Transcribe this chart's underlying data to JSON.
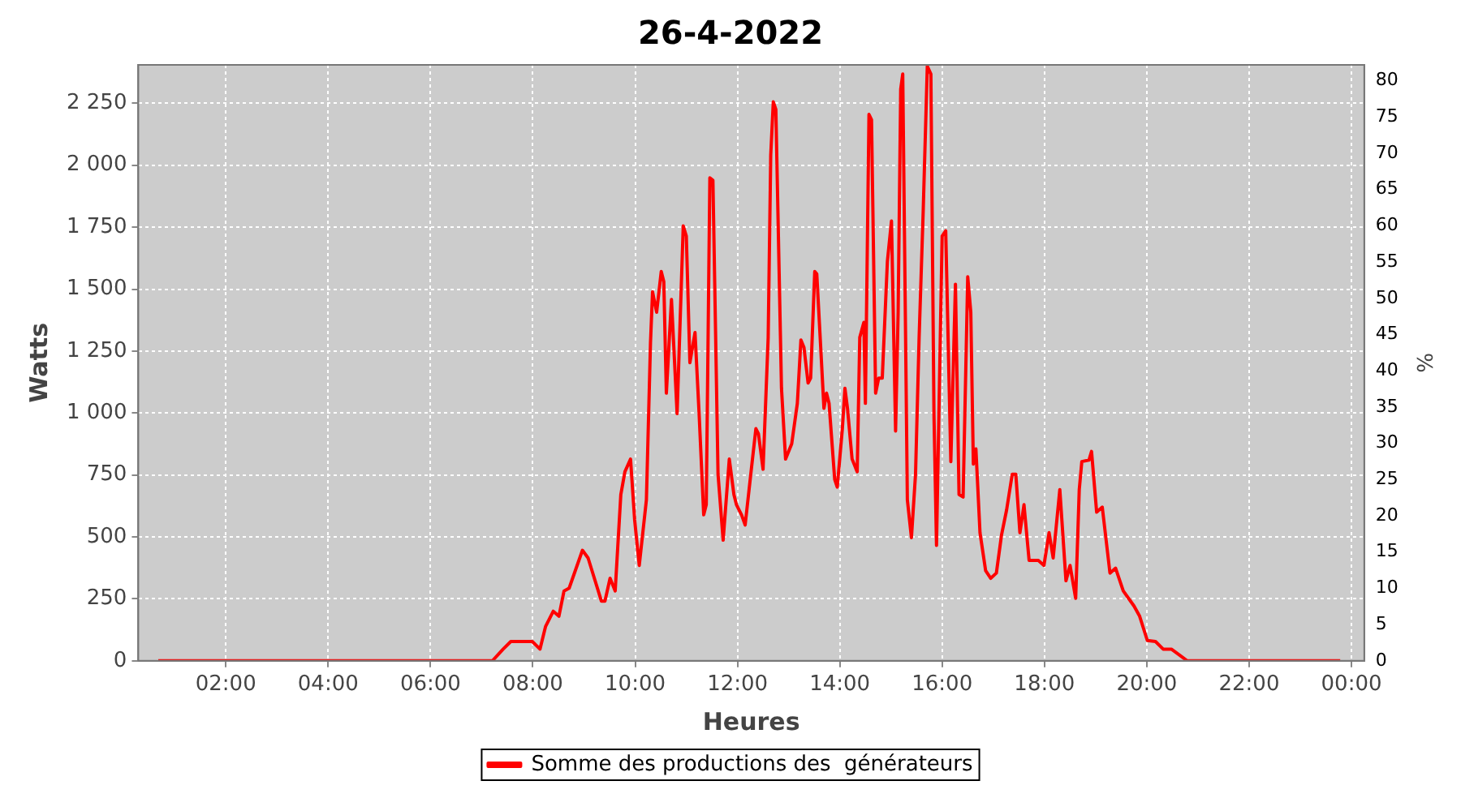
{
  "chart_data": {
    "type": "line",
    "title": "26-4-2022",
    "xlabel": "Heures",
    "ylabel": "Watts",
    "y2label": "%",
    "x": [
      0.68,
      2.0,
      4.0,
      6.0,
      7.21,
      7.42,
      7.57,
      7.99,
      8.14,
      8.25,
      8.4,
      8.51,
      8.61,
      8.71,
      8.97,
      9.08,
      9.34,
      9.41,
      9.51,
      9.61,
      9.72,
      9.8,
      9.91,
      9.99,
      10.08,
      10.22,
      10.3,
      10.34,
      10.42,
      10.51,
      10.56,
      10.61,
      10.71,
      10.82,
      10.94,
      11.0,
      11.07,
      11.17,
      11.25,
      11.34,
      11.39,
      11.46,
      11.52,
      11.62,
      11.72,
      11.84,
      11.93,
      11.98,
      12.08,
      12.15,
      12.26,
      12.36,
      12.41,
      12.5,
      12.6,
      12.65,
      12.7,
      12.75,
      12.86,
      12.94,
      13.06,
      13.17,
      13.24,
      13.3,
      13.38,
      13.43,
      13.51,
      13.55,
      13.69,
      13.74,
      13.79,
      13.9,
      13.95,
      14.05,
      14.1,
      14.15,
      14.24,
      14.34,
      14.39,
      14.47,
      14.5,
      14.57,
      14.62,
      14.7,
      14.76,
      14.83,
      14.93,
      15.01,
      15.09,
      15.14,
      15.19,
      15.23,
      15.32,
      15.4,
      15.48,
      15.55,
      15.63,
      15.71,
      15.78,
      15.84,
      15.89,
      16.0,
      16.07,
      16.17,
      16.26,
      16.33,
      16.41,
      16.5,
      16.56,
      16.61,
      16.66,
      16.74,
      16.85,
      16.95,
      17.06,
      17.16,
      17.26,
      17.37,
      17.44,
      17.52,
      17.6,
      17.7,
      17.88,
      17.99,
      18.09,
      18.17,
      18.3,
      18.42,
      18.5,
      18.61,
      18.68,
      18.73,
      18.87,
      18.92,
      19.02,
      19.13,
      19.28,
      19.39,
      19.54,
      19.75,
      19.86,
      20.01,
      20.17,
      20.32,
      20.48,
      20.68,
      20.79,
      22.0,
      23.78
    ],
    "series": [
      {
        "name": "Somme des productions des  générateurs",
        "color": "#ff0000",
        "values": [
          0,
          0,
          0,
          0,
          0,
          47,
          78,
          78,
          47,
          139,
          200,
          180,
          282,
          293,
          446,
          415,
          241,
          241,
          333,
          282,
          671,
          763,
          814,
          569,
          385,
          650,
          1284,
          1489,
          1407,
          1571,
          1530,
          1080,
          1458,
          998,
          1755,
          1714,
          1203,
          1325,
          998,
          589,
          630,
          1949,
          1939,
          753,
          487,
          814,
          671,
          630,
          589,
          548,
          753,
          937,
          916,
          773,
          1305,
          2041,
          2256,
          2225,
          1100,
          814,
          876,
          1039,
          1295,
          1264,
          1121,
          1141,
          1571,
          1561,
          1019,
          1080,
          1039,
          732,
          701,
          937,
          1100,
          1019,
          814,
          763,
          1305,
          1366,
          1039,
          2205,
          2184,
          1080,
          1141,
          1141,
          1612,
          1775,
          927,
          1407,
          2307,
          2368,
          650,
          497,
          753,
          1305,
          1816,
          2400,
          2368,
          998,
          466,
          1714,
          1735,
          804,
          1520,
          671,
          661,
          1550,
          1407,
          794,
          855,
          517,
          364,
          333,
          354,
          507,
          609,
          753,
          753,
          517,
          630,
          405,
          405,
          385,
          517,
          415,
          691,
          323,
          385,
          252,
          691,
          804,
          810,
          845,
          600,
          620,
          354,
          374,
          282,
          221,
          180,
          82,
          78,
          47,
          47,
          17,
          0,
          0,
          0
        ]
      }
    ],
    "xlim": [
      0.29,
      24.25
    ],
    "xticks": [
      {
        "value": 2,
        "label": "02:00"
      },
      {
        "value": 4,
        "label": "04:00"
      },
      {
        "value": 6,
        "label": "06:00"
      },
      {
        "value": 8,
        "label": "08:00"
      },
      {
        "value": 10,
        "label": "10:00"
      },
      {
        "value": 12,
        "label": "12:00"
      },
      {
        "value": 14,
        "label": "14:00"
      },
      {
        "value": 16,
        "label": "16:00"
      },
      {
        "value": 18,
        "label": "18:00"
      },
      {
        "value": 20,
        "label": "20:00"
      },
      {
        "value": 22,
        "label": "22:00"
      },
      {
        "value": 24,
        "label": "00:00"
      }
    ],
    "ylim": [
      0,
      2405
    ],
    "yticks": [
      0,
      250,
      500,
      750,
      {
        "value": 1000,
        "label": "1 000"
      },
      {
        "value": 1250,
        "label": "1 250"
      },
      {
        "value": 1500,
        "label": "1 500"
      },
      {
        "value": 1750,
        "label": "1 750"
      },
      {
        "value": 2000,
        "label": "2 000"
      },
      {
        "value": 2250,
        "label": "2 250"
      }
    ],
    "y2lim": [
      0,
      82.2
    ],
    "y2ticks": [
      0,
      5,
      10,
      15,
      20,
      25,
      30,
      35,
      40,
      45,
      50,
      55,
      60,
      65,
      70,
      75,
      80
    ],
    "grid": true,
    "legend": "bottom",
    "marker": "none",
    "line_style": "solid"
  }
}
